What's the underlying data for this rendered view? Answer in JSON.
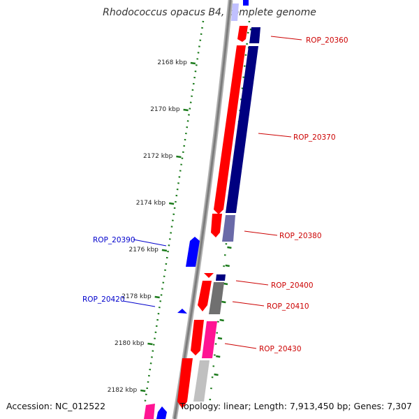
{
  "title": "Rhodococcus opacus B4, complete genome",
  "accession_text": "Accession: NC_012522",
  "topology_text": "Topology: linear; Length: 7,913,450 bp; Genes: 7,307",
  "colors": {
    "background": "#ffffff",
    "backbone": "#8a8a8a",
    "ticks": "#1a7a1a",
    "red": "#ff0000",
    "navy": "#000080",
    "blue": "#0000ff",
    "pink": "#ff1493",
    "gray": "#707070",
    "lightgray": "#c0c0c0",
    "lavender": "#8080ff",
    "label_red": "#cc0000",
    "label_blue": "#0000cc",
    "label_text": "#222222"
  },
  "ruler": {
    "unit": "kbp",
    "ticks": [
      {
        "value": 2168,
        "label": "2168 kbp"
      },
      {
        "value": 2170,
        "label": "2170 kbp"
      },
      {
        "value": 2172,
        "label": "2172 kbp"
      },
      {
        "value": 2174,
        "label": "2174 kbp"
      },
      {
        "value": 2176,
        "label": "2176 kbp"
      },
      {
        "value": 2178,
        "label": "2178 kbp"
      },
      {
        "value": 2180,
        "label": "2180 kbp"
      },
      {
        "value": 2182,
        "label": "2182 kbp"
      }
    ]
  },
  "genes": [
    {
      "id": "ROP_20360",
      "strand": "+",
      "color": "red"
    },
    {
      "id": "ROP_20370",
      "strand": "+",
      "color": "red"
    },
    {
      "id": "ROP_20380",
      "strand": "+",
      "color": "red"
    },
    {
      "id": "ROP_20390",
      "strand": "-",
      "color": "blue"
    },
    {
      "id": "ROP_20400",
      "strand": "+",
      "color": "red"
    },
    {
      "id": "ROP_20410",
      "strand": "+",
      "color": "red"
    },
    {
      "id": "ROP_20420",
      "strand": "-",
      "color": "blue"
    },
    {
      "id": "ROP_20430",
      "strand": "+",
      "color": "red"
    }
  ]
}
